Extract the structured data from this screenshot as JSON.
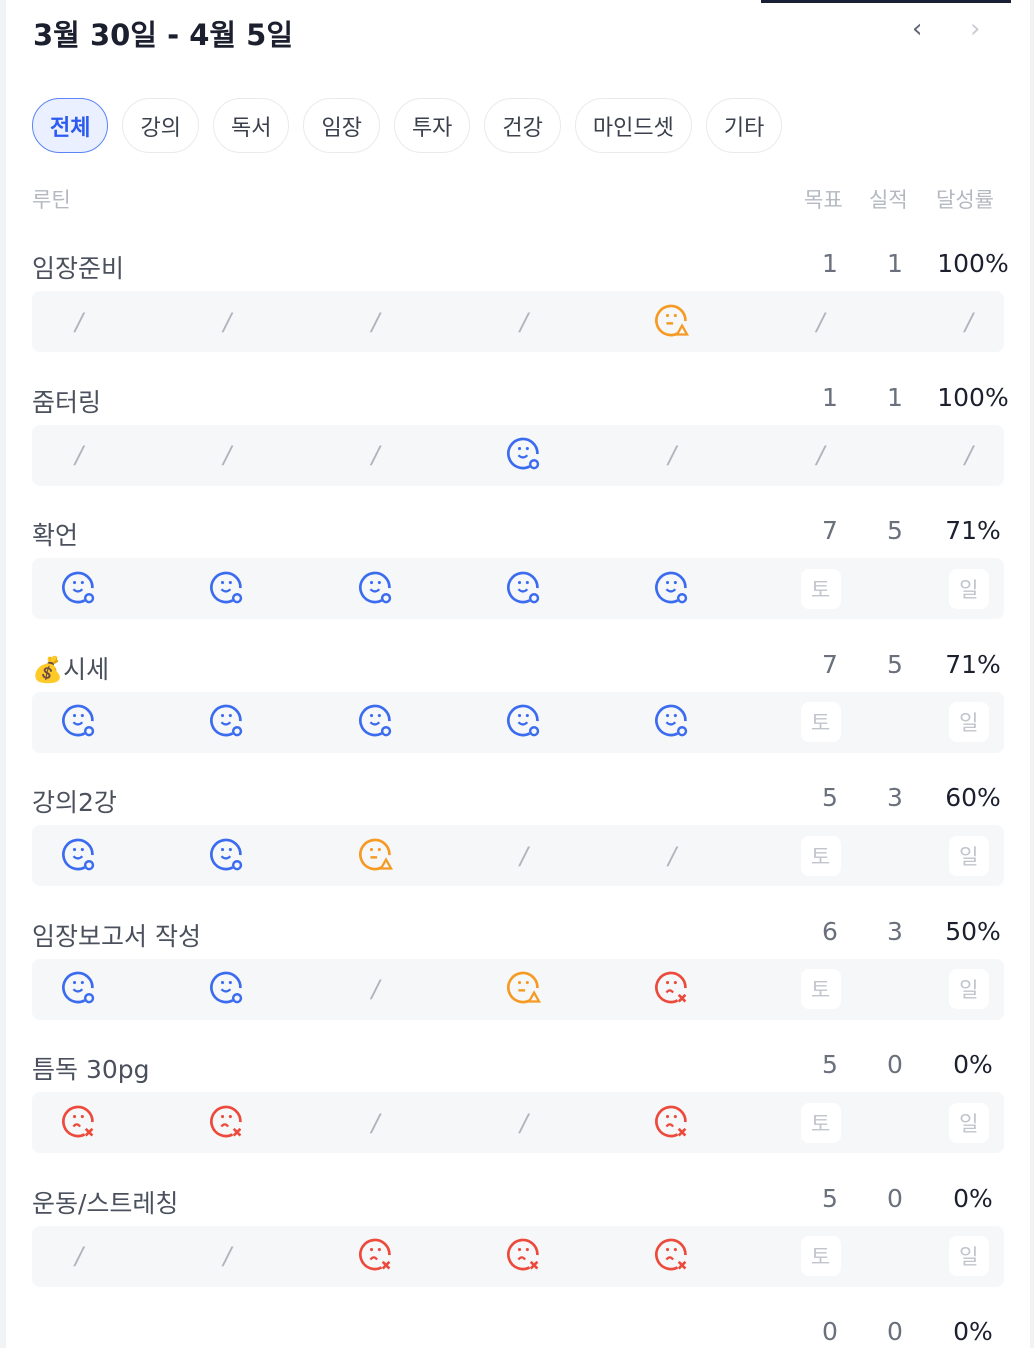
{
  "header": {
    "title": "3월 30일 - 4월 5일",
    "prev_icon": "chevron-left-icon",
    "next_icon": "chevron-right-icon"
  },
  "chips": [
    "전체",
    "강의",
    "독서",
    "임장",
    "투자",
    "건강",
    "마인드셋",
    "기타"
  ],
  "active_chip": "전체",
  "columns": {
    "routine": "루틴",
    "goal": "목표",
    "actual": "실적",
    "rate": "달성률"
  },
  "colors": {
    "success": "#3b6cf0",
    "partial": "#f59a23",
    "fail": "#ec4a3c",
    "accent": "#2d5bf0"
  },
  "routines": [
    {
      "name": "임장준비",
      "goal": "1",
      "actual": "1",
      "rate": "100%",
      "days": [
        "none",
        "none",
        "none",
        "none",
        "partial",
        "none",
        "none"
      ]
    },
    {
      "name": "줌터링",
      "goal": "1",
      "actual": "1",
      "rate": "100%",
      "days": [
        "none",
        "none",
        "none",
        "success",
        "none",
        "none",
        "none"
      ]
    },
    {
      "name": "확언",
      "goal": "7",
      "actual": "5",
      "rate": "71%",
      "days": [
        "success",
        "success",
        "success",
        "success",
        "success",
        "토",
        "일"
      ]
    },
    {
      "name": "💰시세",
      "goal": "7",
      "actual": "5",
      "rate": "71%",
      "days": [
        "success",
        "success",
        "success",
        "success",
        "success",
        "토",
        "일"
      ]
    },
    {
      "name": "강의2강",
      "goal": "5",
      "actual": "3",
      "rate": "60%",
      "days": [
        "success",
        "success",
        "partial",
        "none",
        "none",
        "토",
        "일"
      ]
    },
    {
      "name": "임장보고서 작성",
      "goal": "6",
      "actual": "3",
      "rate": "50%",
      "days": [
        "success",
        "success",
        "none",
        "partial",
        "fail",
        "토",
        "일"
      ]
    },
    {
      "name": "틈독 30pg",
      "goal": "5",
      "actual": "0",
      "rate": "0%",
      "days": [
        "fail",
        "fail",
        "none",
        "none",
        "fail",
        "토",
        "일"
      ]
    },
    {
      "name": "운동/스트레칭",
      "goal": "5",
      "actual": "0",
      "rate": "0%",
      "days": [
        "none",
        "none",
        "fail",
        "fail",
        "fail",
        "토",
        "일"
      ]
    },
    {
      "name": "",
      "goal": "0",
      "actual": "0",
      "rate": "0%",
      "days": []
    }
  ]
}
